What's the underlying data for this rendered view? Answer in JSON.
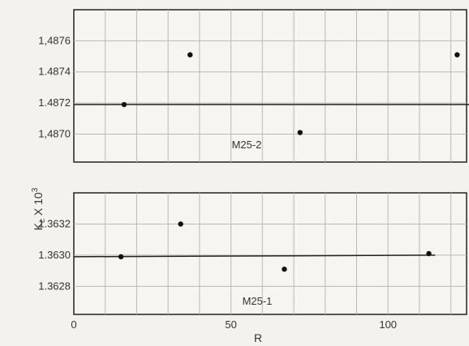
{
  "chart_data": {
    "type": "scatter",
    "ylabel_main": "K",
    "ylabel_sub": "c",
    "ylabel_rest": " X 10",
    "ylabel_sup": "3",
    "xlabel": "R",
    "x_ticks": [
      0,
      50,
      100
    ],
    "x_tick_labels": [
      "0",
      "50",
      "100"
    ],
    "xlim": [
      0,
      125
    ],
    "x_grid_step": 10,
    "panels": [
      {
        "label": "M25-2",
        "ylim": [
          1.48682,
          1.4878
        ],
        "y_ticks": [
          1.487,
          1.4872,
          1.4874,
          1.4876
        ],
        "y_tick_labels": [
          "1,4870",
          "1.4872",
          "1.4874",
          "1,4876"
        ],
        "fit_line": {
          "x": [
            0,
            128
          ],
          "y": [
            1.48719,
            1.48719
          ]
        },
        "points": [
          {
            "x": 16,
            "y": 1.48719
          },
          {
            "x": 37,
            "y": 1.48751
          },
          {
            "x": 72,
            "y": 1.48701
          },
          {
            "x": 122,
            "y": 1.48751
          }
        ]
      },
      {
        "label": "M25-1",
        "ylim": [
          1.36262,
          1.3634
        ],
        "y_ticks": [
          1.3628,
          1.363,
          1.3632
        ],
        "y_tick_labels": [
          "1.3628",
          "1.3630",
          "1.3632"
        ],
        "fit_line": {
          "x": [
            0,
            115
          ],
          "y": [
            1.36299,
            1.363
          ]
        },
        "points": [
          {
            "x": 15,
            "y": 1.36299
          },
          {
            "x": 34,
            "y": 1.3632
          },
          {
            "x": 67,
            "y": 1.36291
          },
          {
            "x": 113,
            "y": 1.36301
          }
        ]
      }
    ],
    "grid": true,
    "legend": "none"
  }
}
